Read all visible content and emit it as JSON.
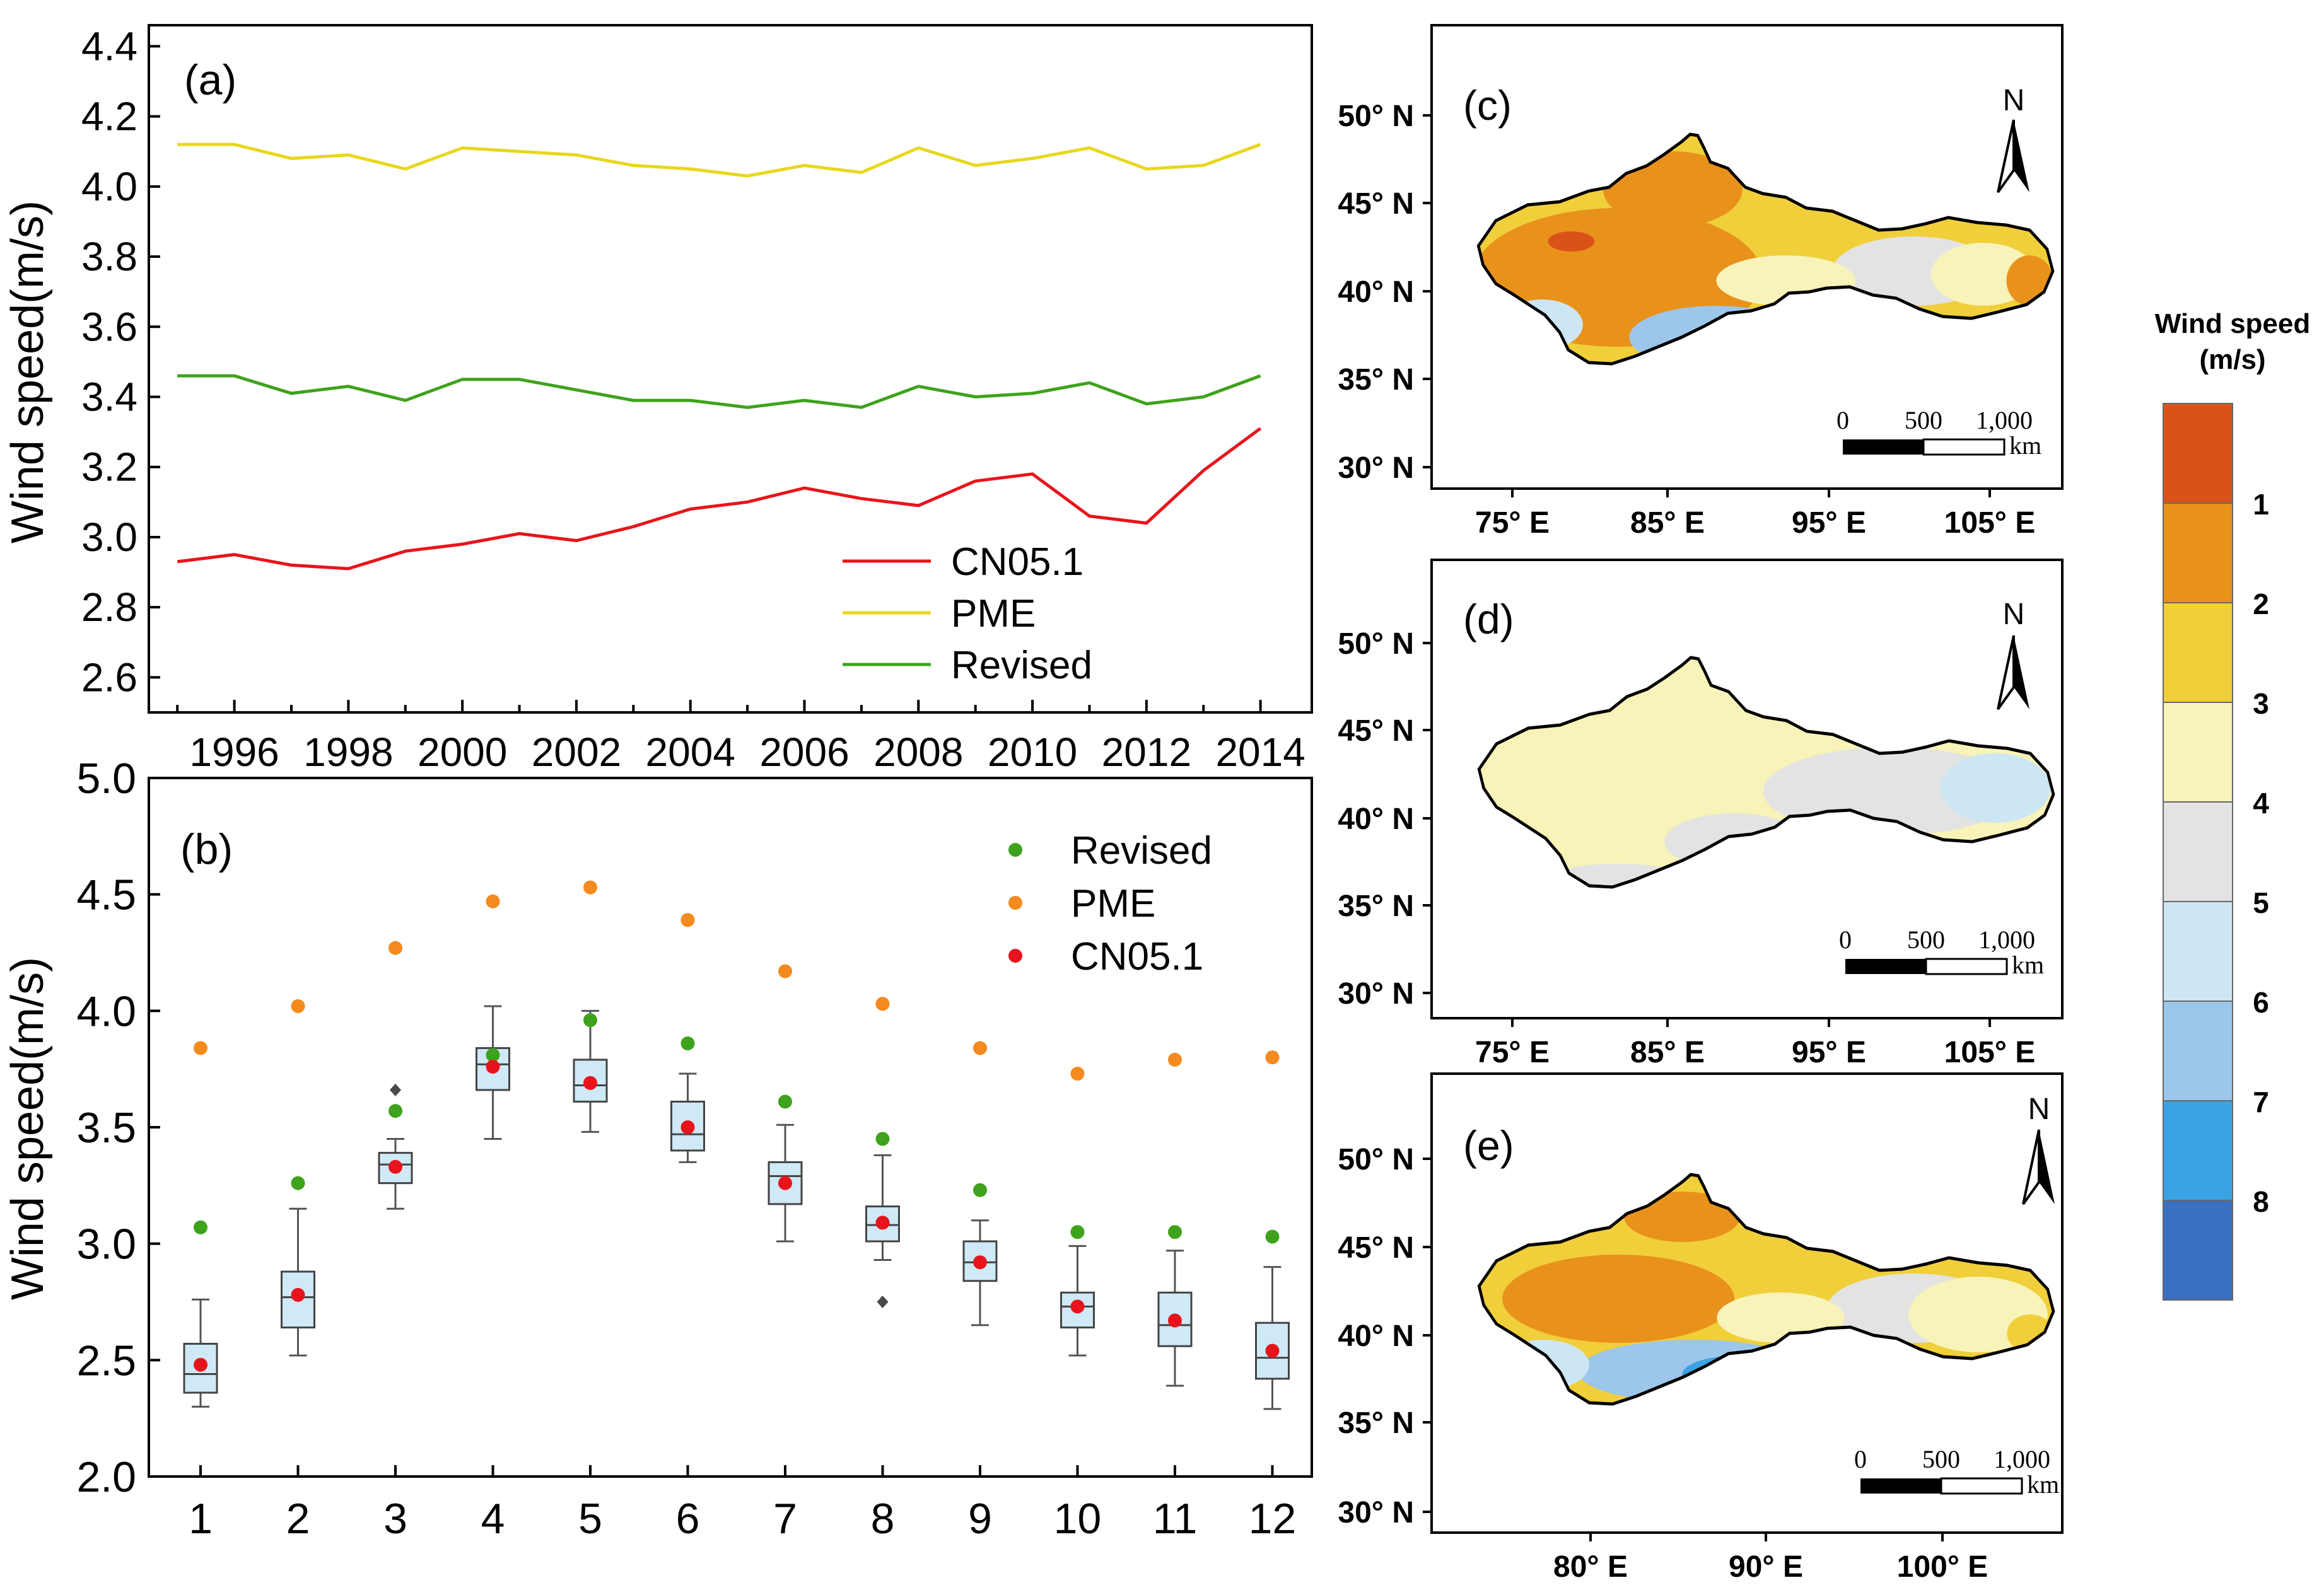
{
  "chart_data": [
    {
      "panel": "(a)",
      "type": "line",
      "ylabel": "Wind speed(m/s)",
      "x": [
        1995,
        1996,
        1997,
        1998,
        1999,
        2000,
        2001,
        2002,
        2003,
        2004,
        2005,
        2006,
        2007,
        2008,
        2009,
        2010,
        2011,
        2012,
        2013,
        2014
      ],
      "xticks": [
        1996,
        1998,
        2000,
        2002,
        2004,
        2006,
        2008,
        2010,
        2012,
        2014
      ],
      "yticks": [
        "2.6",
        "2.8",
        "3.0",
        "3.2",
        "3.4",
        "3.6",
        "3.8",
        "4.0",
        "4.2",
        "4.4"
      ],
      "xlim": [
        1994.5,
        2014.9
      ],
      "ylim": [
        2.5,
        4.46
      ],
      "legend_position": "lower-right",
      "series": [
        {
          "name": "CN05.1",
          "color": "#e8141c",
          "values": [
            2.93,
            2.95,
            2.92,
            2.91,
            2.96,
            2.98,
            3.01,
            2.99,
            3.03,
            3.08,
            3.1,
            3.14,
            3.11,
            3.09,
            3.16,
            3.18,
            3.06,
            3.04,
            3.19,
            3.31
          ]
        },
        {
          "name": "PME",
          "color": "#e8d71c",
          "values": [
            4.12,
            4.12,
            4.08,
            4.09,
            4.05,
            4.11,
            4.1,
            4.09,
            4.06,
            4.05,
            4.03,
            4.06,
            4.04,
            4.11,
            4.06,
            4.08,
            4.11,
            4.05,
            4.06,
            4.12
          ]
        },
        {
          "name": "Revised",
          "color": "#3fa21c",
          "values": [
            3.46,
            3.46,
            3.41,
            3.43,
            3.39,
            3.45,
            3.45,
            3.42,
            3.39,
            3.39,
            3.37,
            3.39,
            3.37,
            3.43,
            3.4,
            3.41,
            3.44,
            3.38,
            3.4,
            3.46
          ]
        }
      ]
    },
    {
      "panel": "(b)",
      "type": "box",
      "ylabel": "Wind speed(m/s)",
      "categories": [
        "1",
        "2",
        "3",
        "4",
        "5",
        "6",
        "7",
        "8",
        "9",
        "10",
        "11",
        "12"
      ],
      "yticks": [
        "2.0",
        "2.5",
        "3.0",
        "3.5",
        "4.0",
        "4.5",
        "5.0"
      ],
      "ylim": [
        2.0,
        5.0
      ],
      "legend_position": "top-right",
      "boxes": [
        {
          "min": 2.3,
          "q1": 2.36,
          "median": 2.44,
          "q3": 2.57,
          "max": 2.76
        },
        {
          "min": 2.52,
          "q1": 2.64,
          "median": 2.77,
          "q3": 2.88,
          "max": 3.15
        },
        {
          "min": 3.15,
          "q1": 3.26,
          "median": 3.34,
          "q3": 3.39,
          "max": 3.45,
          "outliers": [
            3.66
          ]
        },
        {
          "min": 3.45,
          "q1": 3.66,
          "median": 3.77,
          "q3": 3.84,
          "max": 4.02
        },
        {
          "min": 3.48,
          "q1": 3.61,
          "median": 3.68,
          "q3": 3.79,
          "max": 4.0
        },
        {
          "min": 3.35,
          "q1": 3.4,
          "median": 3.47,
          "q3": 3.61,
          "max": 3.73
        },
        {
          "min": 3.01,
          "q1": 3.17,
          "median": 3.29,
          "q3": 3.35,
          "max": 3.51
        },
        {
          "min": 2.93,
          "q1": 3.01,
          "median": 3.08,
          "q3": 3.16,
          "max": 3.38,
          "outliers": [
            2.75
          ]
        },
        {
          "min": 2.65,
          "q1": 2.84,
          "median": 2.92,
          "q3": 3.01,
          "max": 3.1
        },
        {
          "min": 2.52,
          "q1": 2.64,
          "median": 2.73,
          "q3": 2.79,
          "max": 2.99
        },
        {
          "min": 2.39,
          "q1": 2.56,
          "median": 2.65,
          "q3": 2.79,
          "max": 2.97
        },
        {
          "min": 2.29,
          "q1": 2.42,
          "median": 2.51,
          "q3": 2.66,
          "max": 2.9
        }
      ],
      "series": [
        {
          "name": "Revised",
          "color": "#3fa21c",
          "values": [
            3.07,
            3.26,
            3.57,
            3.81,
            3.96,
            3.86,
            3.61,
            3.45,
            3.23,
            3.05,
            3.05,
            3.03
          ]
        },
        {
          "name": "PME",
          "color": "#f58a1f",
          "values": [
            3.84,
            4.02,
            4.27,
            4.47,
            4.53,
            4.39,
            4.17,
            4.03,
            3.84,
            3.73,
            3.79,
            3.8
          ]
        },
        {
          "name": "CN05.1",
          "color": "#e8141c",
          "values": [
            2.48,
            2.78,
            3.33,
            3.76,
            3.69,
            3.5,
            3.26,
            3.09,
            2.92,
            2.73,
            2.67,
            2.54
          ]
        }
      ]
    }
  ],
  "maps": {
    "c": {
      "panel": "(c)",
      "lat_labels": [
        "50° N",
        "45° N",
        "40° N",
        "35° N",
        "30° N"
      ],
      "lon_labels": [
        "75° E",
        "85° E",
        "95° E",
        "105° E"
      ],
      "north": "N",
      "scale": {
        "zero": "0",
        "mid": "500",
        "max": "1,000",
        "unit": "km"
      }
    },
    "d": {
      "panel": "(d)",
      "lat_labels": [
        "50° N",
        "45° N",
        "40° N",
        "35° N",
        "30° N"
      ],
      "lon_labels": [
        "75° E",
        "85° E",
        "95° E",
        "105° E"
      ],
      "north": "N",
      "scale": {
        "zero": "0",
        "mid": "500",
        "max": "1,000",
        "unit": "km"
      }
    },
    "e": {
      "panel": "(e)",
      "lat_labels": [
        "50° N",
        "45° N",
        "40° N",
        "35° N",
        "30° N"
      ],
      "lon_labels": [
        "80° E",
        "90° E",
        "100° E"
      ],
      "north": "N",
      "scale": {
        "zero": "0",
        "mid": "500",
        "max": "1,000",
        "unit": "km"
      }
    }
  },
  "colorbar": {
    "title_line1": "Wind speed",
    "title_line2": "(m/s)",
    "labels": [
      "1",
      "2",
      "3",
      "4",
      "5",
      "6",
      "7",
      "8"
    ],
    "colors": [
      "#d95319",
      "#e8921c",
      "#f0cf3a",
      "#f7f3b9",
      "#e3e3e3",
      "#cde6f3",
      "#9cc6ea",
      "#3aa3e3",
      "#3a6fc2"
    ]
  }
}
